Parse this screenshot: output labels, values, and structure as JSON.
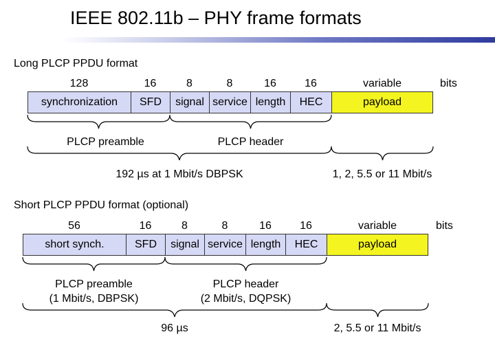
{
  "title": "IEEE 802.11b – PHY frame formats",
  "bits_label": "bits",
  "long_format": {
    "label": "Long PLCP PPDU format",
    "fields": [
      {
        "name": "synchronization",
        "bits": "128"
      },
      {
        "name": "SFD",
        "bits": "16"
      },
      {
        "name": "signal",
        "bits": "8"
      },
      {
        "name": "service",
        "bits": "8"
      },
      {
        "name": "length",
        "bits": "16"
      },
      {
        "name": "HEC",
        "bits": "16"
      },
      {
        "name": "payload",
        "bits": "variable"
      }
    ],
    "preamble_label": "PLCP preamble",
    "header_label": "PLCP header",
    "timing_label": "192 µs at 1 Mbit/s DBPSK",
    "payload_rate_label": "1, 2, 5.5 or 11 Mbit/s"
  },
  "short_format": {
    "label": "Short PLCP PPDU format (optional)",
    "fields": [
      {
        "name": "short synch.",
        "bits": "56"
      },
      {
        "name": "SFD",
        "bits": "16"
      },
      {
        "name": "signal",
        "bits": "8"
      },
      {
        "name": "service",
        "bits": "8"
      },
      {
        "name": "length",
        "bits": "16"
      },
      {
        "name": "HEC",
        "bits": "16"
      },
      {
        "name": "payload",
        "bits": "variable"
      }
    ],
    "preamble_label_line1": "PLCP preamble",
    "preamble_label_line2": "(1 Mbit/s, DBPSK)",
    "header_label_line1": "PLCP header",
    "header_label_line2": "(2 Mbit/s, DQPSK)",
    "timing_label": "96 µs",
    "payload_rate_label": "2, 5.5 or 11 Mbit/s"
  },
  "colors": {
    "field_fill": "#d6d9f5",
    "payload_fill": "#f4f420",
    "title_bar": "#2f3b9e"
  }
}
